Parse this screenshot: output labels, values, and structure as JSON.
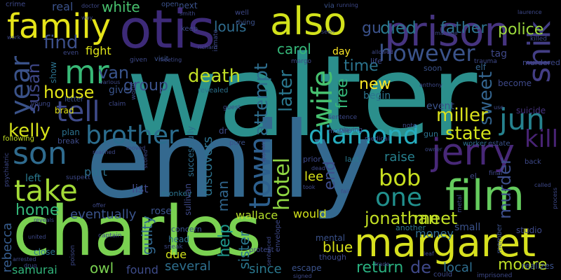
{
  "words": [
    {
      "text": "walter",
      "color": "#2b8f8c"
    },
    {
      "text": "emily",
      "color": "#34698f"
    },
    {
      "text": "charles",
      "color": "#7ad151"
    },
    {
      "text": "margaret",
      "color": "#d7e11f"
    },
    {
      "text": "otis",
      "color": "#3d2a78"
    },
    {
      "text": "prison",
      "color": "#463480"
    },
    {
      "text": "family",
      "color": "#e5e419"
    },
    {
      "text": "also",
      "color": "#d2e21b"
    },
    {
      "text": "film",
      "color": "#65cb5e"
    },
    {
      "text": "jerry",
      "color": "#482878"
    },
    {
      "text": "son",
      "color": "#2f6b8e"
    },
    {
      "text": "take",
      "color": "#a2da37"
    },
    {
      "text": "town",
      "color": "#2d5f8d"
    },
    {
      "text": "mr",
      "color": "#38b977"
    },
    {
      "text": "tell",
      "color": "#3e4a89"
    },
    {
      "text": "year",
      "color": "#3a5289"
    },
    {
      "text": "jun",
      "color": "#26828e"
    },
    {
      "text": "shik",
      "color": "#433e85"
    },
    {
      "text": "brother",
      "color": "#2b6d8e"
    },
    {
      "text": "diamond",
      "color": "#26adbe"
    },
    {
      "text": "however",
      "color": "#3b538a"
    },
    {
      "text": "one",
      "color": "#21908d"
    },
    {
      "text": "wife",
      "color": "#46c06f"
    },
    {
      "text": "bob",
      "color": "#c8e020"
    },
    {
      "text": "jonathan",
      "color": "#c2df23"
    },
    {
      "text": "kill",
      "color": "#482374"
    },
    {
      "text": "murder",
      "color": "#3d4e8a"
    },
    {
      "text": "death",
      "color": "#c0df25"
    },
    {
      "text": "kelly",
      "color": "#d5e21a"
    },
    {
      "text": "hotel",
      "color": "#90d743"
    },
    {
      "text": "attempt",
      "color": "#2e6e8e"
    },
    {
      "text": "later",
      "color": "#2a778e"
    },
    {
      "text": "sweet",
      "color": "#33638d"
    },
    {
      "text": "miller",
      "color": "#dbe21c"
    },
    {
      "text": "state",
      "color": "#d2e21b"
    },
    {
      "text": "home",
      "color": "#34b679"
    },
    {
      "text": "house",
      "color": "#e2e418"
    },
    {
      "text": "van",
      "color": "#3a548c"
    },
    {
      "text": "find",
      "color": "#3c4f8a"
    },
    {
      "text": "susan",
      "color": "#3f4788"
    },
    {
      "text": "time",
      "color": "#2b748e"
    },
    {
      "text": "died",
      "color": "#2a788e"
    },
    {
      "text": "father",
      "color": "#2d708e"
    },
    {
      "text": "police",
      "color": "#9bd93c"
    },
    {
      "text": "gu",
      "color": "#3b528b"
    },
    {
      "text": "carol",
      "color": "#35b779"
    },
    {
      "text": "louis",
      "color": "#2f6c8e"
    },
    {
      "text": "white",
      "color": "#48c16e"
    },
    {
      "text": "group",
      "color": "#3b528b"
    },
    {
      "text": "new",
      "color": "#fde725"
    },
    {
      "text": "end",
      "color": "#3d4d8a"
    },
    {
      "text": "free",
      "color": "#35b779"
    },
    {
      "text": "meet",
      "color": "#c0df25"
    },
    {
      "text": "help",
      "color": "#1f988b"
    },
    {
      "text": "return",
      "color": "#29af7f"
    },
    {
      "text": "de",
      "color": "#3f4889"
    },
    {
      "text": "moore",
      "color": "#bddf26"
    },
    {
      "text": "blue",
      "color": "#d8e219"
    },
    {
      "text": "man",
      "color": "#31668e"
    },
    {
      "text": "discovers",
      "color": "#2c728e"
    },
    {
      "text": "eventually",
      "color": "#3a538b"
    },
    {
      "text": "rebecca",
      "color": "#365c8d"
    },
    {
      "text": "samurai",
      "color": "#31b57b"
    },
    {
      "text": "owl",
      "color": "#7ad151"
    },
    {
      "text": "several",
      "color": "#2e6f8e"
    },
    {
      "text": "since",
      "color": "#2a788e"
    },
    {
      "text": "local",
      "color": "#2e6d8e"
    },
    {
      "text": "found",
      "color": "#3e4c8a"
    },
    {
      "text": "due",
      "color": "#d0e11c"
    },
    {
      "text": "sister",
      "color": "#2a768e"
    },
    {
      "text": "guilty",
      "color": "#31668e"
    },
    {
      "text": "lee",
      "color": "#d8e219"
    },
    {
      "text": "raise",
      "color": "#27808e"
    },
    {
      "text": "money",
      "color": "#2f6b8e"
    },
    {
      "text": "wallace",
      "color": "#b5de2b"
    },
    {
      "text": "would",
      "color": "#d2e21b"
    },
    {
      "text": "part",
      "color": "#2d708e"
    },
    {
      "text": "list",
      "color": "#3e4989"
    },
    {
      "text": "left",
      "color": "#2a788e"
    },
    {
      "text": "rose",
      "color": "#3b528b"
    },
    {
      "text": "fight",
      "color": "#dde318"
    },
    {
      "text": "give",
      "color": "#3a548c"
    },
    {
      "text": "begin",
      "color": "#2c738e"
    },
    {
      "text": "event",
      "color": "#3b528b"
    },
    {
      "text": "suicide",
      "color": "#46327e"
    },
    {
      "text": "become",
      "color": "#3e4989"
    },
    {
      "text": "tag",
      "color": "#3f4889"
    },
    {
      "text": "elf",
      "color": "#33638d"
    },
    {
      "text": "day",
      "color": "#fde725"
    },
    {
      "text": "real",
      "color": "#3b528b"
    },
    {
      "text": "show",
      "color": "#2c728e"
    },
    {
      "text": "brad",
      "color": "#e5e419"
    },
    {
      "text": "plan",
      "color": "#2c728e"
    },
    {
      "text": "break",
      "color": "#3e4c8a"
    },
    {
      "text": "following",
      "color": "#c2df23"
    },
    {
      "text": "worker",
      "color": "#2e6e8e"
    },
    {
      "text": "estate",
      "color": "#3b528b"
    },
    {
      "text": "small",
      "color": "#3b528b"
    },
    {
      "text": "another",
      "color": "#2c738e"
    },
    {
      "text": "mental",
      "color": "#3b528b"
    },
    {
      "text": "close",
      "color": "#2c718e"
    },
    {
      "text": "head",
      "color": "#2d708e"
    },
    {
      "text": "sneak",
      "color": "#3e4989"
    },
    {
      "text": "concern",
      "color": "#3a548c"
    },
    {
      "text": "prior",
      "color": "#3e4989"
    },
    {
      "text": "last",
      "color": "#2a788e"
    },
    {
      "text": "member",
      "color": "#3b528b"
    },
    {
      "text": "studio",
      "color": "#3e4989"
    },
    {
      "text": "realizes",
      "color": "#3b528b"
    },
    {
      "text": "could",
      "color": "#3e4989"
    },
    {
      "text": "escape",
      "color": "#3b528b"
    },
    {
      "text": "protest",
      "color": "#3e4989"
    },
    {
      "text": "imprisoned",
      "color": "#3e4989"
    },
    {
      "text": "monkey",
      "color": "#2c738e"
    },
    {
      "text": "sullivan",
      "color": "#3e4989"
    },
    {
      "text": "successfully",
      "color": "#2e6d8e"
    },
    {
      "text": "pure",
      "color": "#3b528b"
    },
    {
      "text": "crime",
      "color": "#3e4989"
    },
    {
      "text": "open",
      "color": "#3b528b"
    },
    {
      "text": "next",
      "color": "#3b528b"
    },
    {
      "text": "well",
      "color": "#3e4989"
    },
    {
      "text": "dying",
      "color": "#3b528b"
    },
    {
      "text": "via",
      "color": "#3b528b"
    },
    {
      "text": "keep",
      "color": "#3e4989"
    },
    {
      "text": "letter",
      "color": "#3b528b"
    },
    {
      "text": "young",
      "color": "#3e4989"
    },
    {
      "text": "revealed",
      "color": "#2c728e"
    },
    {
      "text": "visit",
      "color": "#3b528b"
    },
    {
      "text": "world",
      "color": "#3e4989"
    },
    {
      "text": "claim",
      "color": "#3e4989"
    },
    {
      "text": "guest",
      "color": "#3e4989"
    },
    {
      "text": "morale",
      "color": "#3e4989"
    },
    {
      "text": "sentence",
      "color": "#3e4989"
    },
    {
      "text": "playing",
      "color": "#3e4989"
    },
    {
      "text": "gun",
      "color": "#2c728e"
    },
    {
      "text": "note",
      "color": "#3e4989"
    },
    {
      "text": "back",
      "color": "#3e4989"
    },
    {
      "text": "final",
      "color": "#3e4989"
    },
    {
      "text": "metal",
      "color": "#3e4989"
    },
    {
      "text": "el",
      "color": "#3e4989"
    },
    {
      "text": "murdered",
      "color": "#3e4989"
    },
    {
      "text": "trauma",
      "color": "#3e4989"
    },
    {
      "text": "killed",
      "color": "#3e4989"
    },
    {
      "text": "soon",
      "color": "#3b528b"
    },
    {
      "text": "life",
      "color": "#3e4989"
    },
    {
      "text": "allowed",
      "color": "#3e4989"
    },
    {
      "text": "anthony",
      "color": "#3e4989"
    },
    {
      "text": "margo",
      "color": "#3e4989"
    },
    {
      "text": "inmate",
      "color": "#3e4989"
    },
    {
      "text": "richard",
      "color": "#3e4989"
    },
    {
      "text": "smith",
      "color": "#3e4989"
    },
    {
      "text": "doctor",
      "color": "#3e4989"
    },
    {
      "text": "way",
      "color": "#3e4989"
    },
    {
      "text": "work",
      "color": "#3e4989"
    },
    {
      "text": "given",
      "color": "#3e4989"
    },
    {
      "text": "meeting",
      "color": "#3e4989"
    },
    {
      "text": "various",
      "color": "#3e4989"
    },
    {
      "text": "even",
      "color": "#3e4989"
    },
    {
      "text": "psychiatric",
      "color": "#3e4989"
    },
    {
      "text": "suspect",
      "color": "#3e4989"
    },
    {
      "text": "offer",
      "color": "#3e4989"
    },
    {
      "text": "reveals",
      "color": "#3e4989"
    },
    {
      "text": "united",
      "color": "#3e4989"
    },
    {
      "text": "arrested",
      "color": "#3e4989"
    },
    {
      "text": "drug",
      "color": "#3e4989"
    },
    {
      "text": "poison",
      "color": "#3e4989"
    },
    {
      "text": "captain",
      "color": "#3e4989"
    },
    {
      "text": "signed",
      "color": "#3e4989"
    },
    {
      "text": "though",
      "color": "#3e4989"
    },
    {
      "text": "envelope",
      "color": "#3e4989"
    },
    {
      "text": "sentenced",
      "color": "#3e4989"
    },
    {
      "text": "medical",
      "color": "#3e4989"
    },
    {
      "text": "dead",
      "color": "#3e4989"
    },
    {
      "text": "took",
      "color": "#3e4989"
    },
    {
      "text": "owner",
      "color": "#3e4989"
    },
    {
      "text": "use",
      "color": "#3e4989"
    },
    {
      "text": "called",
      "color": "#3e4989"
    },
    {
      "text": "process",
      "color": "#3e4989"
    },
    {
      "text": "trade",
      "color": "#3e4989"
    },
    {
      "text": "leaf",
      "color": "#3e4989"
    },
    {
      "text": "moved",
      "color": "#3e4989"
    },
    {
      "text": "scored",
      "color": "#3e4989"
    },
    {
      "text": "appears",
      "color": "#3e4989"
    },
    {
      "text": "manage",
      "color": "#3e4989"
    },
    {
      "text": "seen",
      "color": "#3e4989"
    },
    {
      "text": "reached",
      "color": "#3e4989"
    },
    {
      "text": "running",
      "color": "#3e4989"
    },
    {
      "text": "laurence",
      "color": "#3e4989"
    },
    {
      "text": "dr",
      "color": "#3e4989"
    },
    {
      "text": "fail",
      "color": "#3e4989"
    }
  ]
}
